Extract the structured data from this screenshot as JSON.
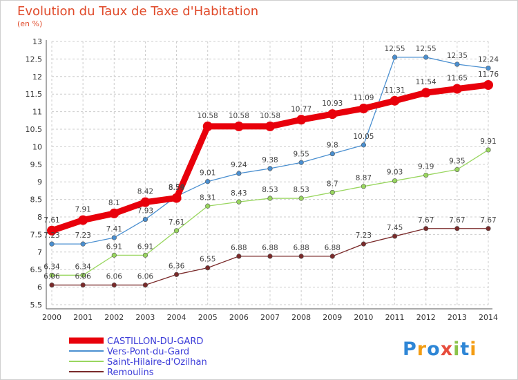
{
  "header": {
    "title": "Evolution du Taux de Taxe d'Habitation",
    "unit": "(en %)"
  },
  "logo": {
    "letters": [
      "P",
      "r",
      "o",
      "x",
      "i",
      "t",
      "i"
    ],
    "colors": [
      "#2e86d6",
      "#f39c12",
      "#2e86d6",
      "#e74c3c",
      "#8bc34a",
      "#2e86d6",
      "#f39c12"
    ]
  },
  "chart_data": {
    "type": "line",
    "title": "Evolution du Taux de Taxe d'Habitation",
    "ylabel": "(en %)",
    "xlabel": "",
    "x": [
      "2000",
      "2001",
      "2002",
      "2003",
      "2004",
      "2005",
      "2006",
      "2007",
      "2008",
      "2009",
      "2010",
      "2011",
      "2012",
      "2013",
      "2014"
    ],
    "ylim": [
      5.5,
      13
    ],
    "yticks": [
      "5.5",
      "6",
      "6.5",
      "7",
      "7.5",
      "8",
      "8.5",
      "9",
      "9.5",
      "10",
      "10.5",
      "11",
      "11.5",
      "12",
      "12.5",
      "13"
    ],
    "grid": "dashed horizontal and vertical",
    "legend_position": "bottom-left",
    "series": [
      {
        "name": "CASTILLON-DU-GARD",
        "color": "#e8000b",
        "values": [
          7.61,
          7.91,
          8.1,
          8.42,
          8.54,
          10.58,
          10.58,
          10.58,
          10.77,
          10.93,
          11.09,
          11.31,
          11.54,
          11.65,
          11.76
        ],
        "labels": [
          "7.61",
          "7.91",
          "8.1",
          "8.42",
          "8.54",
          "10.58",
          "10.58",
          "10.58",
          "10.77",
          "10.93",
          "11.09",
          "11.31",
          "11.54",
          "11.65",
          "11.76"
        ]
      },
      {
        "name": "Vers-Pont-du-Gard",
        "color": "#4a8fd0",
        "values": [
          7.23,
          7.23,
          7.41,
          7.93,
          8.59,
          9.01,
          9.24,
          9.38,
          9.55,
          9.8,
          10.05,
          12.55,
          12.55,
          12.35,
          12.24
        ],
        "labels": [
          "7.23",
          "7.23",
          "7.41",
          "7.93",
          "8.59",
          "9.01",
          "9.24",
          "9.38",
          "9.55",
          "9.8",
          "10.05",
          "12.55",
          "12.55",
          "12.35",
          "12.24"
        ]
      },
      {
        "name": "Saint-Hilaire-d'Ozilhan",
        "color": "#99d65f",
        "values": [
          6.34,
          6.34,
          6.91,
          6.91,
          7.61,
          8.31,
          8.43,
          8.53,
          8.53,
          8.7,
          8.87,
          9.03,
          9.19,
          9.35,
          9.91
        ],
        "labels": [
          "6.34",
          "6.34",
          "6.91",
          "6.91",
          "7.61",
          "8.31",
          "8.43",
          "8.53",
          "8.53",
          "8.7",
          "8.87",
          "9.03",
          "9.19",
          "9.35",
          "9.91"
        ]
      },
      {
        "name": "Remoulins",
        "color": "#7a2a2a",
        "values": [
          6.06,
          6.06,
          6.06,
          6.06,
          6.36,
          6.55,
          6.88,
          6.88,
          6.88,
          6.88,
          7.23,
          7.45,
          7.67,
          7.67,
          7.67
        ],
        "labels": [
          "6.06",
          "6.06",
          "6.06",
          "6.06",
          "6.36",
          "6.55",
          "6.88",
          "6.88",
          "6.88",
          "6.88",
          "7.23",
          "7.45",
          "7.67",
          "7.67",
          "7.67"
        ]
      }
    ]
  }
}
